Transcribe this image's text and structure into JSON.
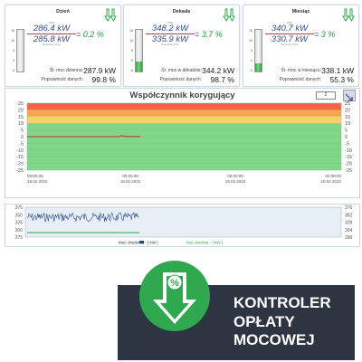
{
  "panels": [
    {
      "title": "Dzień",
      "numerator": "286.4 kW",
      "numerator_caption": "PPE",
      "denominator": "285.8 kW",
      "denominator_caption": "Rezerwa mocy",
      "ratio": "0.2 %",
      "avg_label": "Śr. moc dzienna:",
      "avg_value": "287.9 kW",
      "quality_label": "Poprawność danych:",
      "quality_value": "99.8 %",
      "gauge_ticks": [
        "15",
        "10",
        "5",
        "0",
        "-5"
      ],
      "gauge_level": 0.0
    },
    {
      "title": "Dekada",
      "numerator": "348.2 kW",
      "numerator_caption": "PPE",
      "denominator": "335.9 kW",
      "denominator_caption": "Rezerwa mocy",
      "ratio": "3.7 %",
      "avg_label": "Śr. moc w dekadzie:",
      "avg_value": "344.2 kW",
      "quality_label": "Poprawność danych:",
      "quality_value": "98.7 %",
      "gauge_ticks": [
        "15",
        "10",
        "5",
        "0",
        "-5"
      ],
      "gauge_level": 0.25
    },
    {
      "title": "Miesiąc",
      "numerator": "340.7 kW",
      "numerator_caption": "PPE",
      "denominator": "330.7 kW",
      "denominator_caption": "Rezerwa mocy",
      "ratio": "3 %",
      "avg_label": "Śr. moc w miesiącu:",
      "avg_value": "338.1 kW",
      "quality_label": "Poprawność danych:",
      "quality_value": "55.3 %",
      "gauge_ticks": [
        "15",
        "10",
        "5",
        "0",
        "-5"
      ],
      "gauge_level": 0.2
    }
  ],
  "correction_chart": {
    "title": "Współczynnik korygujący",
    "input_value": "2",
    "y_ticks": [
      25,
      20,
      15,
      10,
      5,
      0,
      -5,
      -10,
      -15,
      -20,
      -25
    ],
    "x_ticks": [
      {
        "time": "00:00:00",
        "date": "18.02.2022"
      },
      {
        "time": "00:00:00",
        "date": "18.02.2022"
      },
      {
        "time": "00:00:00",
        "date": "18.02.2022"
      },
      {
        "time": "00:00:00",
        "date": "19.02.2022"
      }
    ],
    "zones": [
      {
        "from": 25,
        "to": 20,
        "color": "#f2644a"
      },
      {
        "from": 20,
        "to": 15,
        "color": "#f7a54e"
      },
      {
        "from": 15,
        "to": 10,
        "color": "#f5d36a"
      },
      {
        "from": 10,
        "to": -25,
        "color": "#7fd889"
      }
    ],
    "line_color": "#c0392b"
  },
  "power_chart": {
    "y_ticks_left": [
      "375",
      "350",
      "325",
      "300",
      "275"
    ],
    "y_ticks_right": [
      "376",
      "352",
      "328",
      "304",
      "280"
    ],
    "legend_1": "Moc chwilowa - [ kW ]",
    "legend_2": "Moc średnia - [ kW ]",
    "series_1_color": "#2b4a8a",
    "series_2_color": "#2aa84a"
  },
  "banner": {
    "lines": [
      "KONTROLER",
      "OPŁATY",
      "MOCOWEJ"
    ],
    "icon_symbol": "%"
  },
  "colors": {
    "accent_green": "#1b9a3a",
    "banner_bg": "#2e3542",
    "icon_green": "#2fa84f"
  }
}
